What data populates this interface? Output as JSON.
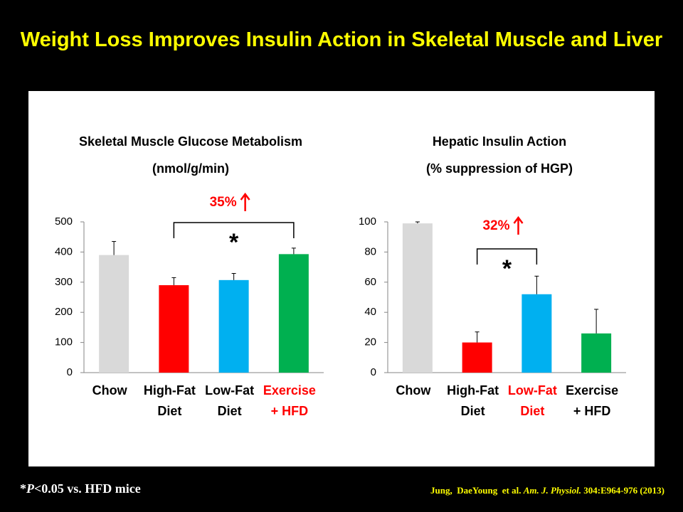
{
  "title": "Weight Loss Improves Insulin Action in Skeletal Muscle and Liver",
  "footnote": [
    "*",
    "P",
    "<0.05 vs. HFD mice"
  ],
  "citation": [
    "Jung,  DaeYoung  et al. ",
    "Am. J. Physiol.",
    " 304:E964-976 (2013)"
  ],
  "chart_data": [
    {
      "type": "bar",
      "title": "Skeletal Muscle Glucose Metabolism",
      "subtitle": "(nmol/g/min)",
      "categories": [
        "Chow",
        "High-Fat\nDiet",
        "Low-Fat\nDiet",
        "Exercise\n+ HFD"
      ],
      "category_label_colors": [
        "#000000",
        "#000000",
        "#000000",
        "#ff0000"
      ],
      "colors": [
        "#d9d9d9",
        "#ff0000",
        "#00b0f0",
        "#00b050"
      ],
      "series": [
        {
          "values": [
            390,
            290,
            307,
            393
          ],
          "errors": [
            45,
            25,
            22,
            20
          ]
        }
      ],
      "ylim": [
        0,
        500
      ],
      "yticks": [
        0,
        100,
        200,
        300,
        400,
        500
      ],
      "annotation": {
        "label": "35%",
        "marker": "*"
      }
    },
    {
      "type": "bar",
      "title": "Hepatic Insulin Action",
      "subtitle": "(% suppression of HGP)",
      "categories": [
        "Chow",
        "High-Fat\nDiet",
        "Low-Fat\nDiet",
        "Exercise\n+ HFD"
      ],
      "category_label_colors": [
        "#000000",
        "#000000",
        "#ff0000",
        "#000000"
      ],
      "colors": [
        "#d9d9d9",
        "#ff0000",
        "#00b0f0",
        "#00b050"
      ],
      "series": [
        {
          "values": [
            99,
            20,
            52,
            26
          ],
          "errors": [
            1,
            7,
            12,
            16
          ]
        }
      ],
      "ylim": [
        0,
        100
      ],
      "yticks": [
        0,
        20,
        40,
        60,
        80,
        100
      ],
      "annotation": {
        "label": "32%",
        "marker": "*"
      }
    }
  ]
}
